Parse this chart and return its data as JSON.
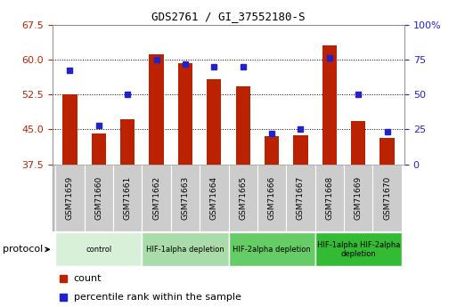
{
  "title": "GDS2761 / GI_37552180-S",
  "samples": [
    "GSM71659",
    "GSM71660",
    "GSM71661",
    "GSM71662",
    "GSM71663",
    "GSM71664",
    "GSM71665",
    "GSM71666",
    "GSM71667",
    "GSM71668",
    "GSM71669",
    "GSM71670"
  ],
  "counts": [
    52.5,
    44.2,
    47.1,
    61.2,
    59.3,
    55.8,
    54.2,
    43.5,
    43.7,
    63.1,
    46.8,
    43.2
  ],
  "percentiles": [
    67,
    28,
    50,
    75,
    72,
    70,
    70,
    22,
    25,
    76,
    50,
    23
  ],
  "ylim_left": [
    37.5,
    67.5
  ],
  "ylim_right": [
    0,
    100
  ],
  "yticks_left": [
    37.5,
    45.0,
    52.5,
    60.0,
    67.5
  ],
  "yticks_right": [
    0,
    25,
    50,
    75,
    100
  ],
  "bar_color": "#bb2200",
  "dot_color": "#2222cc",
  "tick_color_left": "#bb2200",
  "tick_color_right": "#2222cc",
  "protocol_groups": [
    {
      "label": "control",
      "start": 0,
      "end": 2,
      "color": "#d8f0d8"
    },
    {
      "label": "HIF-1alpha depletion",
      "start": 3,
      "end": 5,
      "color": "#aadcaa"
    },
    {
      "label": "HIF-2alpha depletion",
      "start": 6,
      "end": 8,
      "color": "#66cc66"
    },
    {
      "label": "HIF-1alpha HIF-2alpha\ndepletion",
      "start": 9,
      "end": 11,
      "color": "#33bb33"
    }
  ],
  "legend_count_label": "count",
  "legend_pct_label": "percentile rank within the sample",
  "protocol_label": "protocol"
}
